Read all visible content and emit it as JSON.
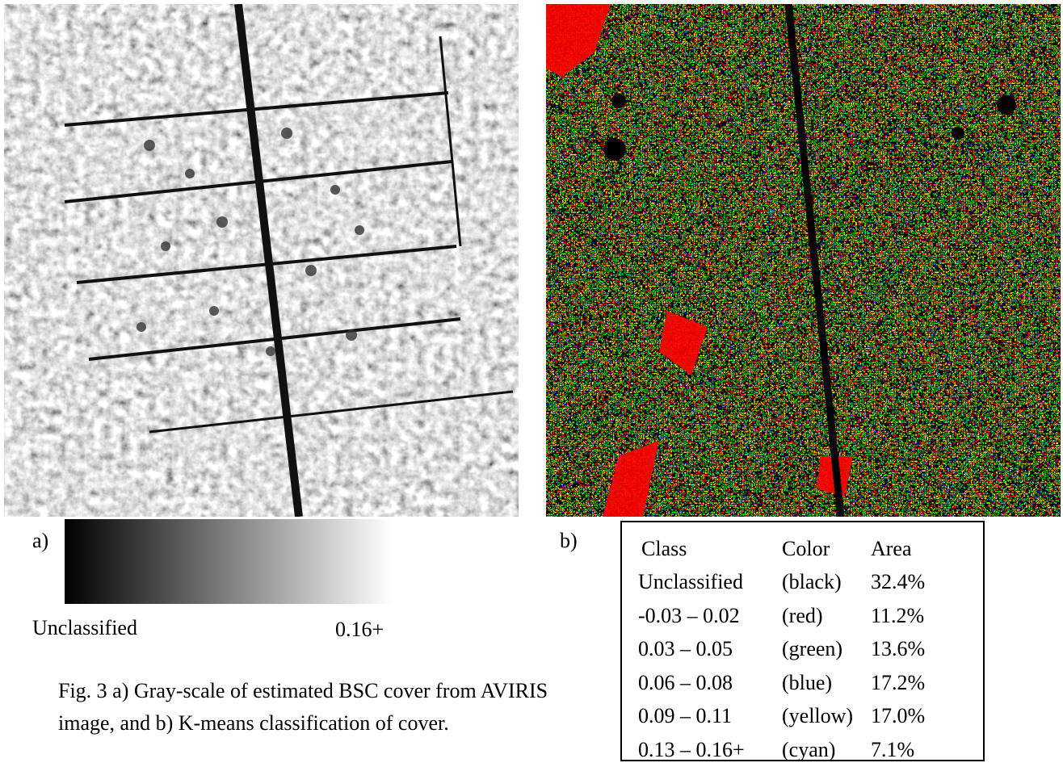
{
  "panel_a": {
    "label": "a)",
    "legend_min": "Unclassified",
    "legend_max": "0.16+"
  },
  "panel_b": {
    "label": "b)"
  },
  "caption": "Fig. 3 a) Gray-scale of estimated BSC cover from AVIRIS image, and b) K-means classification of cover.",
  "table": {
    "header": [
      "Class",
      "Color",
      "Area"
    ],
    "rows": [
      [
        "Unclassified",
        "(black)",
        "32.4%"
      ],
      [
        "-0.03 – 0.02",
        "(red)",
        "11.2%"
      ],
      [
        "0.03 – 0.05",
        "(green)",
        "13.6%"
      ],
      [
        "0.06 – 0.08",
        "(blue)",
        "17.2%"
      ],
      [
        "0.09 – 0.11",
        "(yellow)",
        "17.0%"
      ],
      [
        "0.13 – 0.16+",
        "(cyan)",
        "7.1%"
      ]
    ]
  }
}
